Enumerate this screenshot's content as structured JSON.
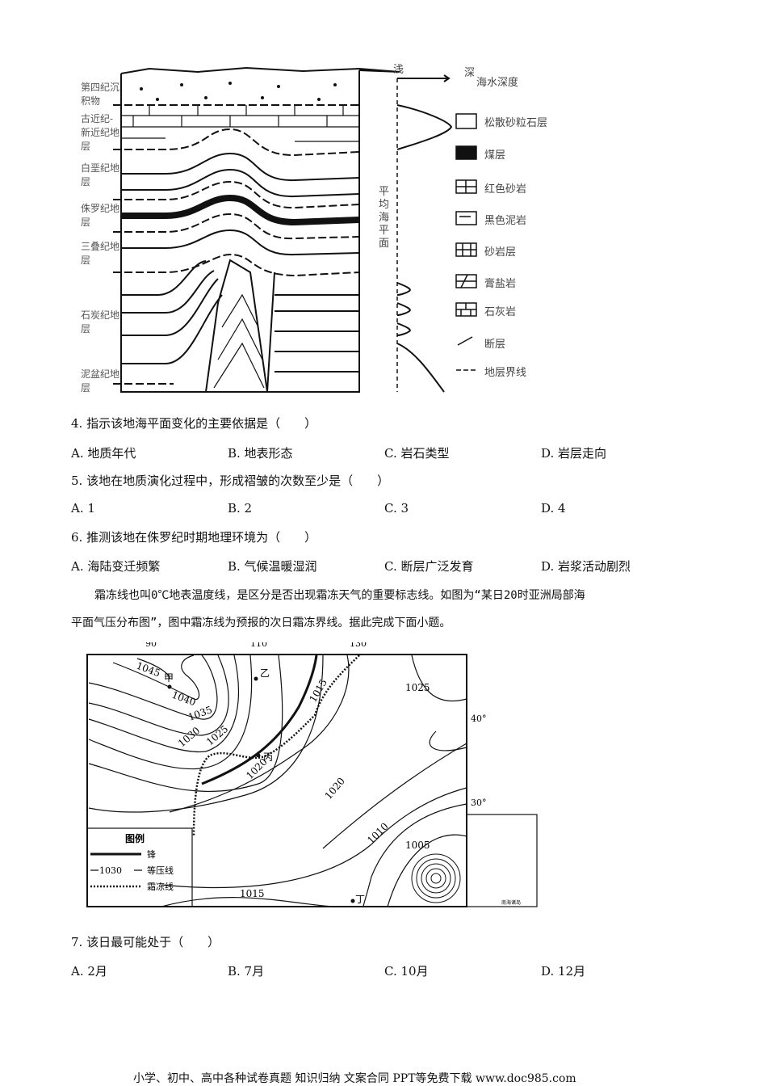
{
  "figure1": {
    "strata_labels": [
      "第四纪沉积物",
      "古近纪-新近纪地层",
      "白垩纪地层",
      "侏罗纪地层",
      "三叠纪地层",
      "石炭纪地层",
      "泥盆纪地层"
    ],
    "depth_axis": {
      "shallow": "浅",
      "deep": "深",
      "title": "海水深度",
      "sea_level": "平均海平面"
    },
    "legend": [
      "松散砂粒石层",
      "煤层",
      "红色砂岩",
      "黑色泥岩",
      "砂岩层",
      "膏盐岩",
      "石灰岩",
      "断层",
      "地层界线"
    ]
  },
  "questions": [
    {
      "stem": "4. 指示该地海平面变化的主要依据是（　　）",
      "options": [
        "A. 地质年代",
        "B. 地表形态",
        "C. 岩石类型",
        "D. 岩层走向"
      ]
    },
    {
      "stem": "5. 该地在地质演化过程中，形成褶皱的次数至少是（　　）",
      "options": [
        "A. 1",
        "B. 2",
        "C. 3",
        "D. 4"
      ]
    },
    {
      "stem": "6. 推测该地在侏罗纪时期地理环境为（　　）",
      "options": [
        "A. 海陆变迁频繁",
        "B. 气候温暖湿润",
        "C. 断层广泛发育",
        "D. 岩浆活动剧烈"
      ]
    }
  ],
  "passage": [
    "霜冻线也叫0℃地表温度线，是区分是否出现霜冻天气的重要标志线。如图为“某日20时亚洲局部海",
    "平面气压分布图”，图中霜冻线为预报的次日霜冻界线。据此完成下面小题。"
  ],
  "figure2": {
    "longitudes": [
      "90°",
      "110°",
      "130°"
    ],
    "latitudes": [
      "40°",
      "30°"
    ],
    "isobars": [
      "1045",
      "1040",
      "1035",
      "1030",
      "1025",
      "1020",
      "1015",
      "1025",
      "1020",
      "1020",
      "1015",
      "1010",
      "1005"
    ],
    "points": [
      "甲",
      "乙",
      "丙",
      "丁"
    ],
    "legend_title": "图例",
    "legend": [
      {
        "sample": "",
        "label": "锋"
      },
      {
        "sample": "1030",
        "label": "等压线"
      },
      {
        "sample": "",
        "label": "霜冻线"
      }
    ],
    "inset_label": "南海诸岛"
  },
  "question7": {
    "stem": "7. 该日最可能处于（　　）",
    "options": [
      "A. 2月",
      "B. 7月",
      "C. 10月",
      "D. 12月"
    ]
  },
  "footer": "小学、初中、高中各种试卷真题  知识归纳  文案合同  PPT等免费下载    www.doc985.com"
}
